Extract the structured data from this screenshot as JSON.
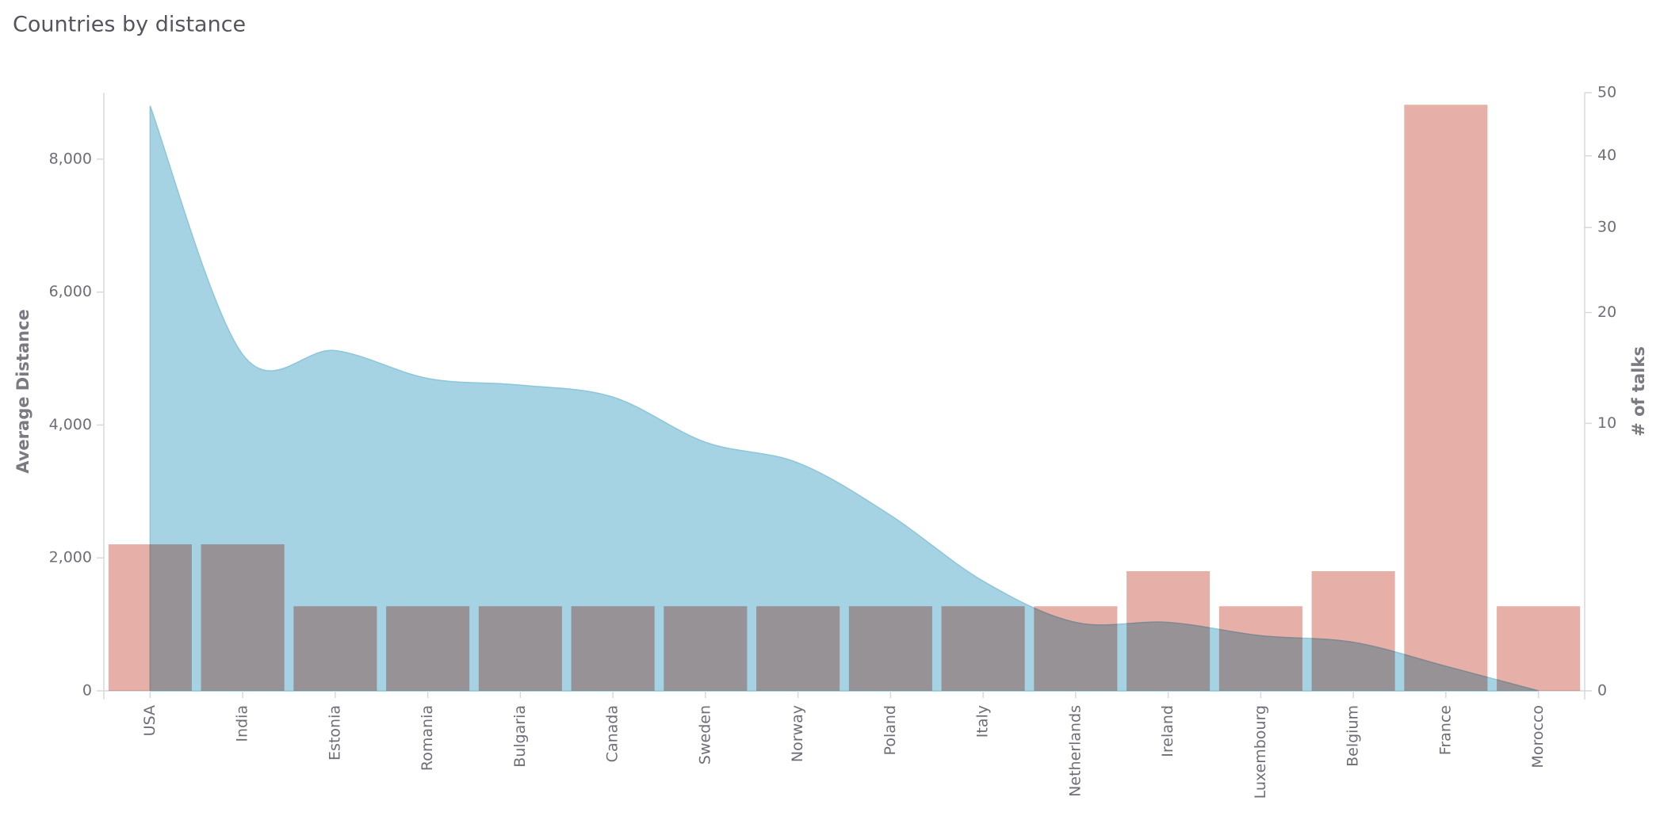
{
  "chart_data": {
    "type": "combo",
    "title": "Countries by distance",
    "categories": [
      "USA",
      "India",
      "Estonia",
      "Romania",
      "Bulgaria",
      "Canada",
      "Sweden",
      "Norway",
      "Poland",
      "Italy",
      "Netherlands",
      "Ireland",
      "Luxembourg",
      "Belgium",
      "France",
      "Morocco"
    ],
    "y_label": "Average Distance",
    "y2_label": "# of talks",
    "ylim": [
      0,
      9000
    ],
    "yticks": [
      0,
      {
        "value": 2000,
        "label": "2,000"
      },
      {
        "value": 4000,
        "label": "4,000"
      },
      {
        "value": 6000,
        "label": "6,000"
      },
      {
        "value": 8000,
        "label": "8,000"
      }
    ],
    "y2lim": [
      0,
      50
    ],
    "y2ticks": [
      0,
      10,
      20,
      30,
      40,
      50
    ],
    "y2_scale": "sqrt",
    "series": [
      {
        "type": "area",
        "color": "#a6d3e3",
        "values": [
          8800,
          5060,
          5120,
          4700,
          4600,
          4420,
          3740,
          3430,
          2640,
          1650,
          1030,
          1030,
          830,
          730,
          370,
          0
        ]
      },
      {
        "type": "bar",
        "axis": "y2",
        "color": "#e6b0a8",
        "values": [
          3,
          3,
          1,
          1,
          1,
          1,
          1,
          1,
          1,
          1,
          1,
          2,
          1,
          2,
          48,
          1
        ]
      }
    ]
  }
}
